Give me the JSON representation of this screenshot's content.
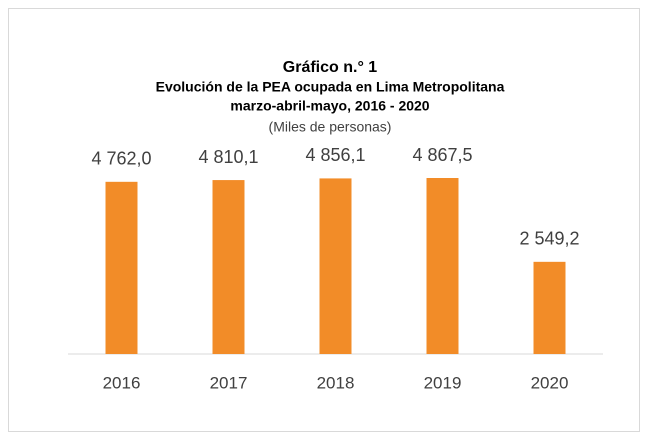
{
  "chart_data": {
    "type": "bar",
    "title": "Gráfico n.° 1",
    "subtitle": "Evolución de la PEA ocupada en Lima Metropolitana",
    "period": "marzo-abril-mayo, 2016 - 2020",
    "units": "(Miles de personas)",
    "categories": [
      "2016",
      "2017",
      "2018",
      "2019",
      "2020"
    ],
    "values": [
      4762.0,
      4810.1,
      4856.1,
      4867.5,
      2549.2
    ],
    "value_labels": [
      "4 762,0",
      "4 810,1",
      "4 856,1",
      "4 867,5",
      "2 549,2"
    ],
    "color": "#f28c28"
  }
}
